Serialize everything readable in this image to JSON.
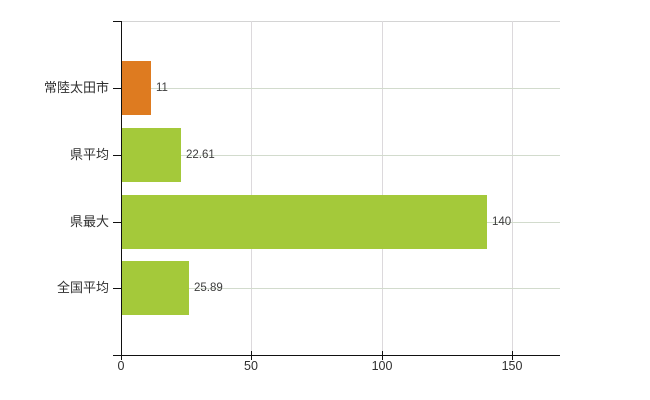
{
  "chart_data": {
    "type": "bar",
    "orientation": "horizontal",
    "title": "",
    "xlabel": "",
    "ylabel": "",
    "legend": null,
    "grid": true,
    "categories": [
      "常陸太田市",
      "県平均",
      "県最大",
      "全国平均"
    ],
    "values": [
      11,
      22.61,
      140,
      25.89
    ],
    "value_labels": [
      "11",
      "22.61",
      "140",
      "25.89"
    ],
    "bar_colors": [
      "#de7b20",
      "#a4c93a",
      "#a4c93a",
      "#a4c93a"
    ],
    "x_tick_labels": [
      "0",
      "50",
      "100",
      "150"
    ],
    "x_tick_values": [
      0,
      50,
      100,
      150
    ],
    "xlim": [
      0,
      168.4
    ]
  },
  "style": {
    "background": "#ffffff",
    "axis_color": "#111111",
    "grid_color_horizontal": "#d2dbcd",
    "grid_color_vertical": "#dcd9dc",
    "top_border_color": "#d4d4d4",
    "category_label_color": "#2f2f2f",
    "value_label_color": "#3d3d3d",
    "orange_accent": "#de7b20",
    "green_accent": "#a4c93a"
  }
}
